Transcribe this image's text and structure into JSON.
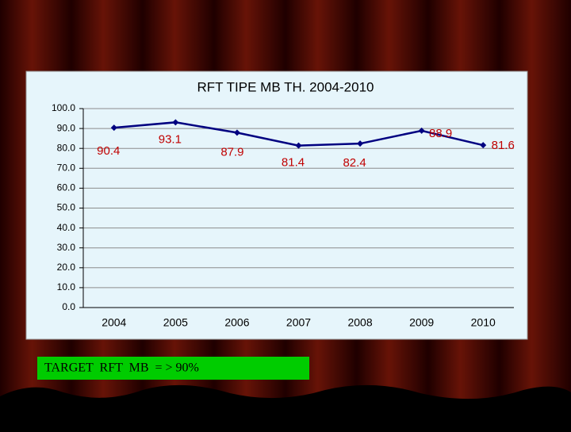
{
  "chart_data": {
    "type": "line",
    "title": "RFT TIPE MB TH. 2004-2010",
    "categories": [
      "2004",
      "2005",
      "2006",
      "2007",
      "2008",
      "2009",
      "2010"
    ],
    "values": [
      90.4,
      93.1,
      87.9,
      81.4,
      82.4,
      88.9,
      81.6
    ],
    "color": "#000080",
    "label_color": "#c00000",
    "ylim": [
      0,
      100
    ],
    "yticks": [
      {
        "value": 0,
        "label": "0.0"
      },
      {
        "value": 10,
        "label": "10.0"
      },
      {
        "value": 20,
        "label": "20.0"
      },
      {
        "value": 30,
        "label": "30.0"
      },
      {
        "value": 40,
        "label": "40.0"
      },
      {
        "value": 50,
        "label": "50.0"
      },
      {
        "value": 60,
        "label": "60.0"
      },
      {
        "value": 70,
        "label": "70.0"
      },
      {
        "value": 80,
        "label": "80.0"
      },
      {
        "value": 90,
        "label": "90.0"
      },
      {
        "value": 100,
        "label": "100.0"
      }
    ],
    "grid": true,
    "annotation": "TARGET  RFT  MB  = > 90%"
  }
}
